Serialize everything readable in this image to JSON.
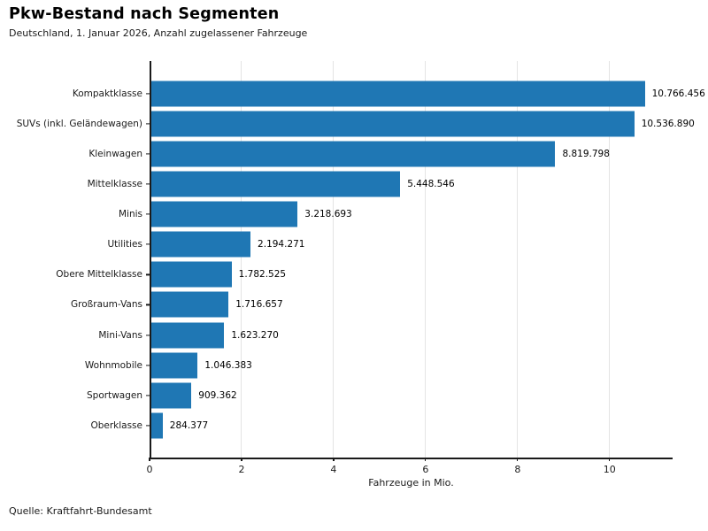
{
  "header": {
    "title": "Pkw-Bestand nach Segmenten",
    "subtitle": "Deutschland, 1. Januar 2026, Anzahl zugelassener Fahrzeuge"
  },
  "footer": {
    "source": "Quelle: Kraftfahrt-Bundesamt"
  },
  "chart_data": {
    "type": "bar",
    "orientation": "horizontal",
    "title": "Pkw-Bestand nach Segmenten",
    "subtitle": "Deutschland, 1. Januar 2026, Anzahl zugelassener Fahrzeuge",
    "categories": [
      "Kompaktklasse",
      "SUVs (inkl. Geländewagen)",
      "Kleinwagen",
      "Mittelklasse",
      "Minis",
      "Utilities",
      "Obere Mittelklasse",
      "Großraum-Vans",
      "Mini-Vans",
      "Wohnmobile",
      "Sportwagen",
      "Oberklasse"
    ],
    "values": [
      10766456,
      10536890,
      8819798,
      5448546,
      3218693,
      2194271,
      1782525,
      1716657,
      1623270,
      1046383,
      909362,
      284377
    ],
    "value_labels": [
      "10.766.456",
      "10.536.890",
      "8.819.798",
      "5.448.546",
      "3.218.693",
      "2.194.271",
      "1.782.525",
      "1.716.657",
      "1.623.270",
      "1.046.383",
      "909.362",
      "284.377"
    ],
    "xlabel": "Fahrzeuge in Mio.",
    "x_ticks": [
      0,
      2,
      4,
      6,
      8,
      10
    ],
    "x_tick_labels": [
      "0",
      "2",
      "4",
      "6",
      "8",
      "10"
    ],
    "xlim": [
      0,
      11.37
    ],
    "grid": true,
    "legend": false,
    "bar_color": "#1f77b4",
    "axis_color": "#1a1a1a",
    "gridline_color": "#e4e4e4",
    "source": "Quelle: Kraftfahrt-Bundesamt"
  }
}
